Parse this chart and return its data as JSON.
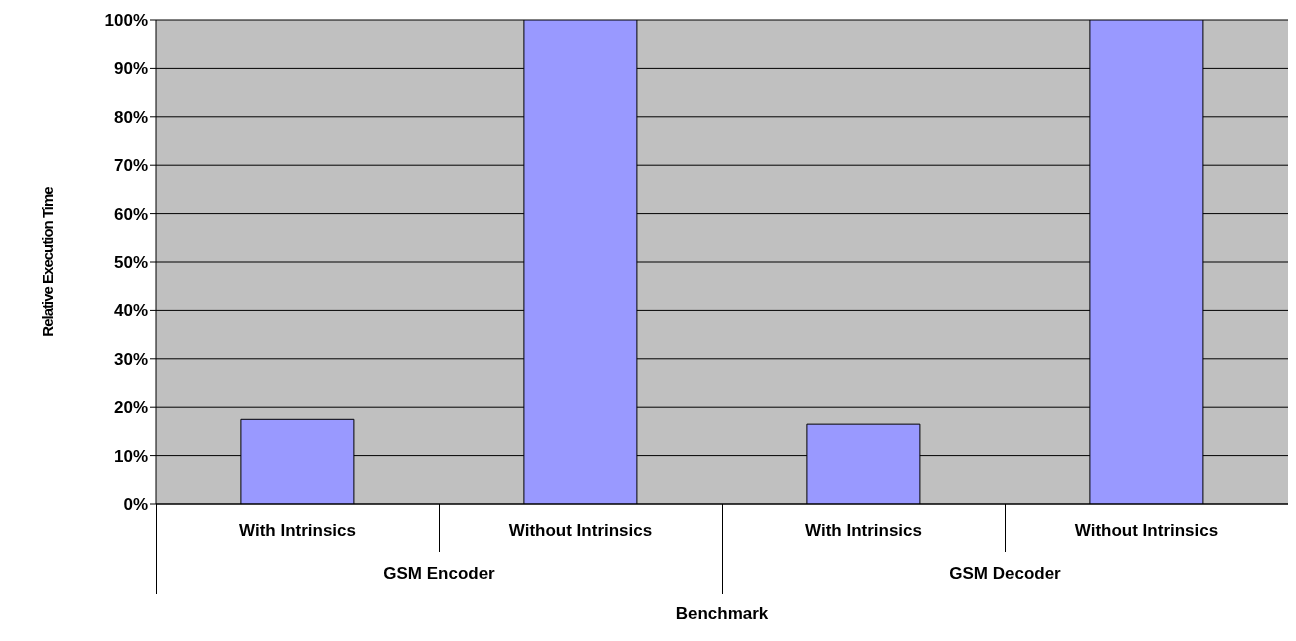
{
  "chart_data": {
    "type": "bar",
    "xlabel": "Benchmark",
    "ylabel": "Relative Execution Time",
    "categories": [
      "With Intrinsics",
      "Without Intrinsics",
      "With Intrinsics",
      "Without Intrinsics"
    ],
    "values": [
      17.5,
      100,
      16.5,
      100
    ],
    "color": "#9999ff",
    "ylim": [
      0,
      100
    ],
    "yticks": [
      {
        "value": 0,
        "label": "0%"
      },
      {
        "value": 10,
        "label": "10%"
      },
      {
        "value": 20,
        "label": "20%"
      },
      {
        "value": 30,
        "label": "30%"
      },
      {
        "value": 40,
        "label": "40%"
      },
      {
        "value": 50,
        "label": "50%"
      },
      {
        "value": 60,
        "label": "60%"
      },
      {
        "value": 70,
        "label": "70%"
      },
      {
        "value": 80,
        "label": "80%"
      },
      {
        "value": 90,
        "label": "90%"
      },
      {
        "value": 100,
        "label": "100%"
      }
    ],
    "annotations": [
      "GSM Encoder",
      "GSM Decoder"
    ],
    "grid": "y"
  }
}
